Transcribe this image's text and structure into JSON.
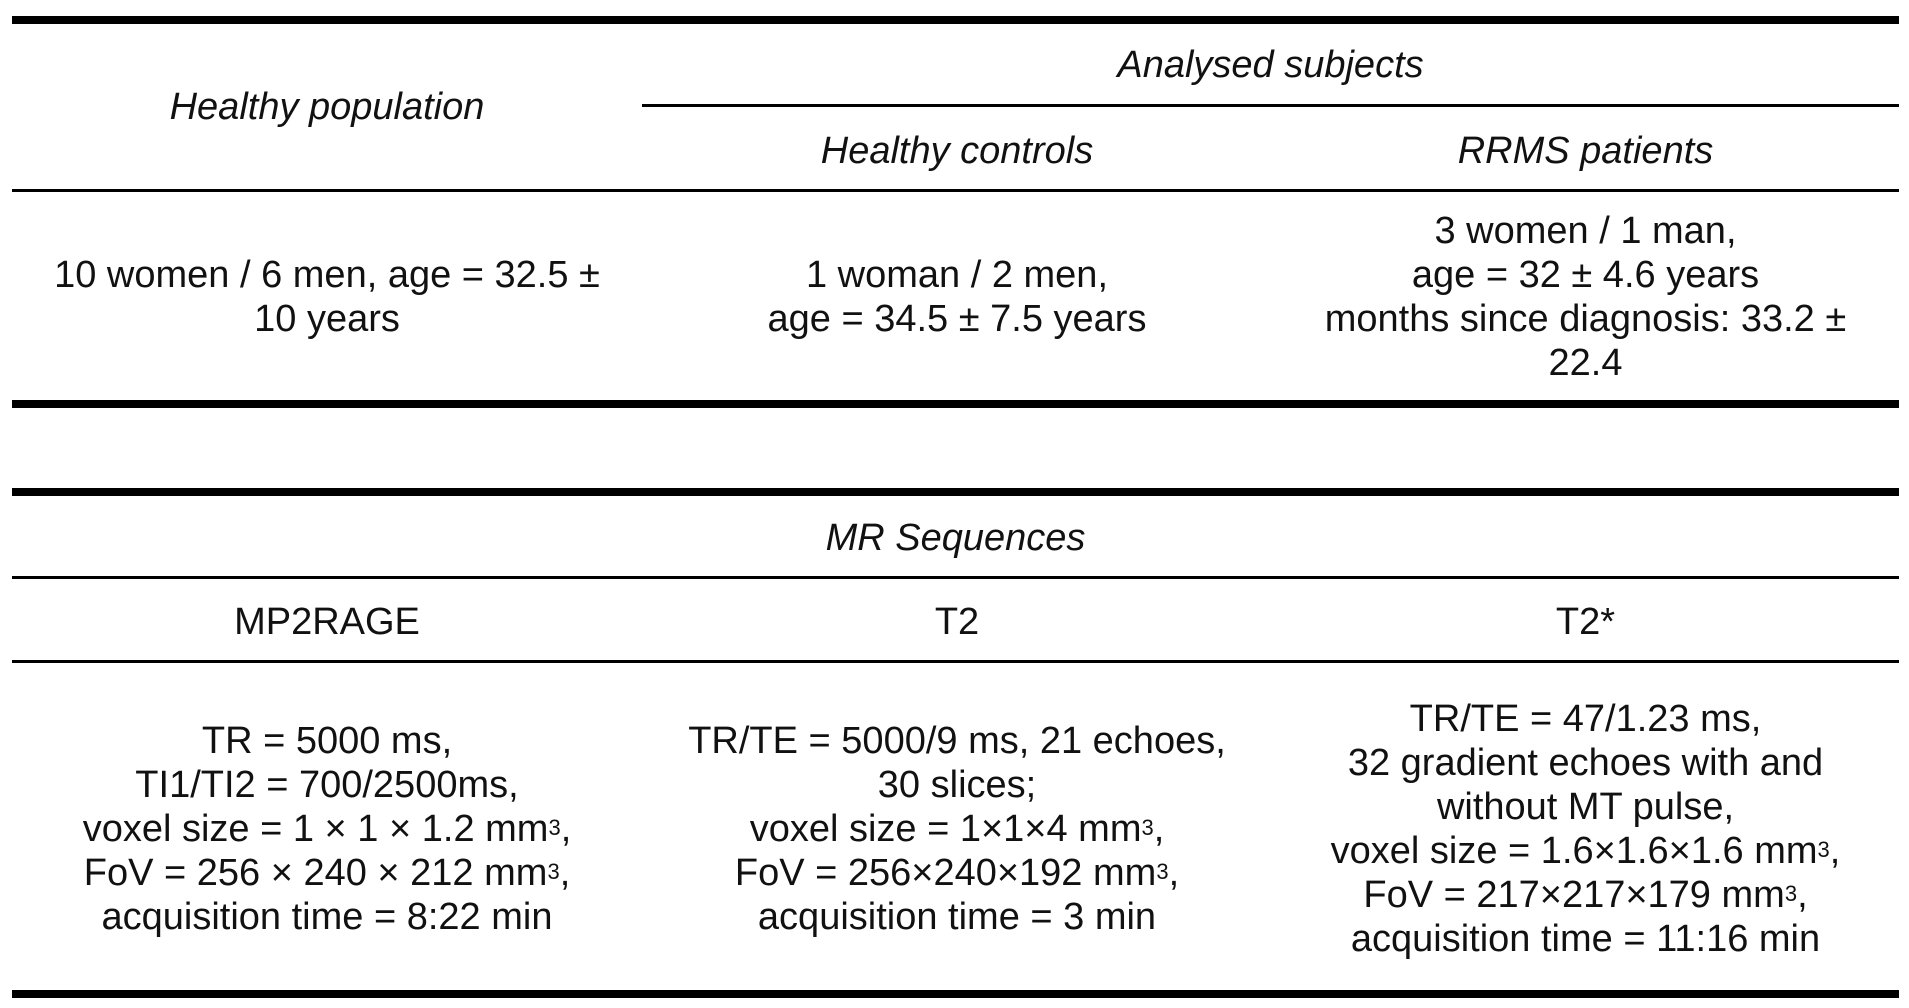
{
  "table1": {
    "header": {
      "healthy_population": "Healthy population",
      "analysed_subjects": "Analysed subjects",
      "healthy_controls": "Healthy controls",
      "rrms_patients": "RRMS patients"
    },
    "row": {
      "healthy_population": [
        "10 women / 6 men, age = 32.5 ±",
        "10 years"
      ],
      "healthy_controls": [
        "1 woman / 2 men,",
        "age = 34.5 ± 7.5 years"
      ],
      "rrms_patients": [
        "3 women / 1 man,",
        "age = 32 ± 4.6 years",
        "months since diagnosis: 33.2 ±",
        "22.4"
      ]
    }
  },
  "table2": {
    "title": "MR Sequences",
    "columns": [
      "MP2RAGE",
      "T2",
      "T2*"
    ],
    "mp2rage": {
      "line1": "TR = 5000 ms,",
      "line2": "TI1/TI2 = 700/2500ms,",
      "line3": "voxel size = 1 × 1 × 1.2 mm",
      "line3_sup": "3",
      "line3_end": ",",
      "line4": "FoV = 256 × 240 × 212 mm",
      "line4_sup": "3",
      "line4_end": ",",
      "line5": "acquisition time = 8:22 min"
    },
    "t2": {
      "line1": "TR/TE = 5000/9 ms, 21 echoes,",
      "line2": "30 slices;",
      "line3": "voxel size = 1×1×4 mm",
      "line3_sup": "3",
      "line3_end": ",",
      "line4": "FoV = 256×240×192 mm",
      "line4_sup": "3",
      "line4_end": ",",
      "line5": "acquisition time = 3 min"
    },
    "t2star": {
      "line1": "TR/TE = 47/1.23 ms,",
      "line2": "32 gradient echoes with and",
      "line3": "without MT pulse,",
      "line4": "voxel size = 1.6×1.6×1.6 mm",
      "line4_sup": "3",
      "line4_end": ",",
      "line5": "FoV = 217×217×179 mm",
      "line5_sup": "3",
      "line5_end": ",",
      "line6": "acquisition time = 11:16 min"
    }
  }
}
